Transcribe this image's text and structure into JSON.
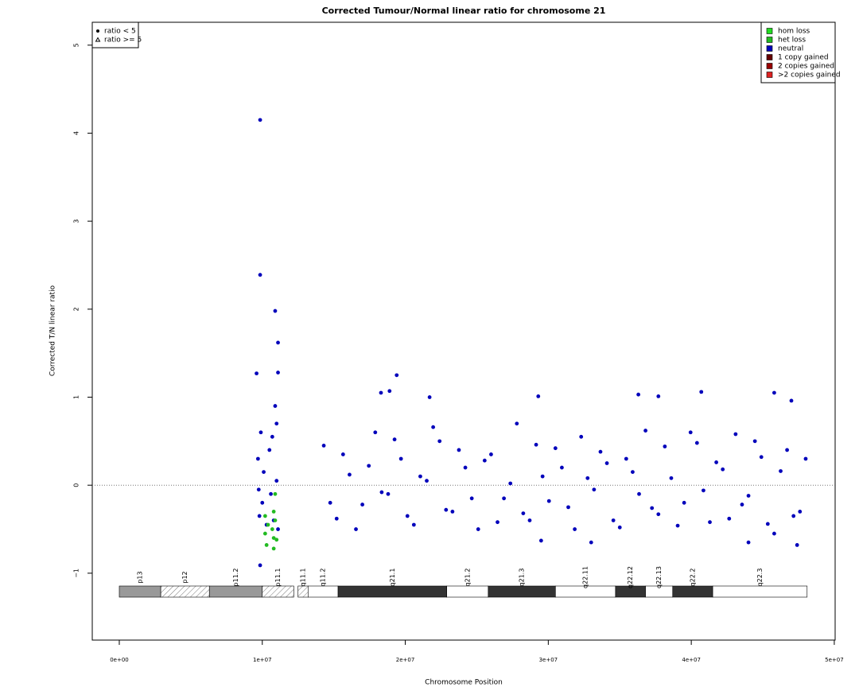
{
  "chart_data": {
    "type": "scatter",
    "title": "Corrected Tumour/Normal linear ratio for chromosome  21",
    "x_label": "Chromosome Position",
    "y_label": "Corrected T/N linear ratio",
    "xlim": [
      -1890000,
      50060000
    ],
    "ylim": [
      -1.76,
      5.26
    ],
    "xticks": [
      {
        "value": 0,
        "label": "0e+00"
      },
      {
        "value": 10000000,
        "label": "1e+07"
      },
      {
        "value": 20000000,
        "label": "2e+07"
      },
      {
        "value": 30000000,
        "label": "3e+07"
      },
      {
        "value": 40000000,
        "label": "4e+07"
      },
      {
        "value": 50000000,
        "label": "5e+07"
      }
    ],
    "yticks": [
      {
        "value": -1,
        "label": "−1"
      },
      0,
      1,
      2,
      3,
      4,
      5
    ],
    "hline": 0,
    "shape_legend": [
      "ratio < 5",
      "ratio >= 5"
    ],
    "legend_position": "top-right",
    "series": [
      {
        "name": "hom loss",
        "color": "#22dd22",
        "x": [],
        "values": []
      },
      {
        "name": "het loss",
        "color": "#22bb22",
        "x": [
          10200000,
          10200000,
          10300000,
          10400000,
          10700000,
          10800000,
          10800000,
          10900000,
          10900000,
          11000000,
          10800000
        ],
        "values": [
          -0.35,
          -0.55,
          -0.68,
          -0.45,
          -0.5,
          -0.6,
          -0.72,
          -0.1,
          -0.4,
          -0.62,
          -0.3
        ]
      },
      {
        "name": "neutral",
        "color": "#0000bb",
        "x": [
          9700000,
          9800000,
          9900000,
          10000000,
          10100000,
          10300000,
          10500000,
          10600000,
          10700000,
          10800000,
          10900000,
          11000000,
          11100000,
          11000000,
          9750000,
          14300000,
          15200000,
          16100000,
          17000000,
          17900000,
          18800000,
          19700000,
          20600000,
          21500000,
          22400000,
          23300000,
          24200000,
          25100000,
          26000000,
          26900000,
          27800000,
          28700000,
          29600000,
          30500000,
          31400000,
          32300000,
          33200000,
          34100000,
          35000000,
          35900000,
          36800000,
          37700000,
          38600000,
          39500000,
          40400000,
          41300000,
          42200000,
          43100000,
          44000000,
          44900000,
          45800000,
          46700000,
          47600000,
          14750000,
          15650000,
          16550000,
          17450000,
          18350000,
          19250000,
          20150000,
          21050000,
          21950000,
          22850000,
          23750000,
          24650000,
          25550000,
          26450000,
          27350000,
          28250000,
          29150000,
          30050000,
          30950000,
          31850000,
          32750000,
          33650000,
          34550000,
          35450000,
          36350000,
          37250000,
          38150000,
          39050000,
          39950000,
          40850000,
          41750000,
          42650000,
          43550000,
          44450000,
          45350000,
          46250000,
          47150000,
          48000000,
          9850000,
          9850000,
          10900000,
          11100000,
          9600000,
          11100000,
          19400000,
          18900000,
          18300000,
          29300000,
          21700000,
          36300000,
          37700000,
          40700000,
          45800000,
          47000000,
          9850000,
          33000000,
          47400000,
          29500000,
          44000000
        ],
        "values": [
          0.3,
          -0.35,
          0.6,
          -0.2,
          0.15,
          -0.45,
          0.4,
          -0.1,
          0.55,
          -0.4,
          0.9,
          0.05,
          -0.5,
          0.7,
          -0.05,
          0.45,
          -0.38,
          0.12,
          -0.22,
          0.6,
          -0.1,
          0.3,
          -0.45,
          0.05,
          0.5,
          -0.3,
          0.2,
          -0.5,
          0.35,
          -0.15,
          0.7,
          -0.4,
          0.1,
          0.42,
          -0.25,
          0.55,
          -0.05,
          0.25,
          -0.48,
          0.15,
          0.62,
          -0.33,
          0.08,
          -0.2,
          0.48,
          -0.42,
          0.18,
          0.58,
          -0.12,
          0.32,
          -0.55,
          0.4,
          -0.3,
          -0.2,
          0.35,
          -0.5,
          0.22,
          -0.08,
          0.52,
          -0.35,
          0.1,
          0.66,
          -0.28,
          0.4,
          -0.15,
          0.28,
          -0.42,
          0.02,
          -0.32,
          0.46,
          -0.18,
          0.2,
          -0.5,
          0.08,
          0.38,
          -0.4,
          0.3,
          -0.1,
          -0.26,
          0.44,
          -0.46,
          0.6,
          -0.06,
          0.26,
          -0.38,
          -0.22,
          0.5,
          -0.44,
          0.16,
          -0.35,
          0.3,
          4.15,
          2.39,
          1.98,
          1.62,
          1.27,
          1.28,
          1.25,
          1.07,
          1.05,
          1.01,
          1.0,
          1.03,
          1.01,
          1.06,
          1.05,
          0.96,
          -0.91,
          -0.65,
          -0.68,
          -0.63,
          -0.65
        ]
      },
      {
        "name": "1 copy gained",
        "color": "#660000",
        "x": [],
        "values": []
      },
      {
        "name": "2 copies gained",
        "color": "#990000",
        "x": [],
        "values": []
      },
      {
        "name": ">2 copies gained",
        "color": "#dd2222",
        "x": [],
        "values": []
      }
    ],
    "ideogram": [
      {
        "label": "p13",
        "start": 0,
        "end": 2900000,
        "color": "#999999",
        "hatched": false
      },
      {
        "label": "p12",
        "start": 2900000,
        "end": 6300000,
        "color": "#ffffff",
        "hatched": true
      },
      {
        "label": "p11.2",
        "start": 6300000,
        "end": 10000000,
        "color": "#999999",
        "hatched": false
      },
      {
        "label": "p11.1",
        "start": 10000000,
        "end": 12200000,
        "color": "#ffffff",
        "hatched": true
      },
      {
        "label": "q11.1",
        "start": 12500000,
        "end": 13200000,
        "color": "#ffffff",
        "hatched": true
      },
      {
        "label": "q11.2",
        "start": 13200000,
        "end": 15300000,
        "color": "#ffffff",
        "hatched": false
      },
      {
        "label": "q21.1",
        "start": 15300000,
        "end": 22900000,
        "color": "#333333",
        "hatched": false
      },
      {
        "label": "q21.2",
        "start": 22900000,
        "end": 25800000,
        "color": "#ffffff",
        "hatched": false
      },
      {
        "label": "q21.3",
        "start": 25800000,
        "end": 30500000,
        "color": "#333333",
        "hatched": false
      },
      {
        "label": "q22.11",
        "start": 30500000,
        "end": 34700000,
        "color": "#ffffff",
        "hatched": false
      },
      {
        "label": "q22.12",
        "start": 34700000,
        "end": 36800000,
        "color": "#333333",
        "hatched": false
      },
      {
        "label": "q22.13",
        "start": 36800000,
        "end": 38700000,
        "color": "#ffffff",
        "hatched": false
      },
      {
        "label": "q22.2",
        "start": 38700000,
        "end": 41500000,
        "color": "#333333",
        "hatched": false
      },
      {
        "label": "q22.3",
        "start": 41500000,
        "end": 48100000,
        "color": "#ffffff",
        "hatched": false
      }
    ]
  }
}
